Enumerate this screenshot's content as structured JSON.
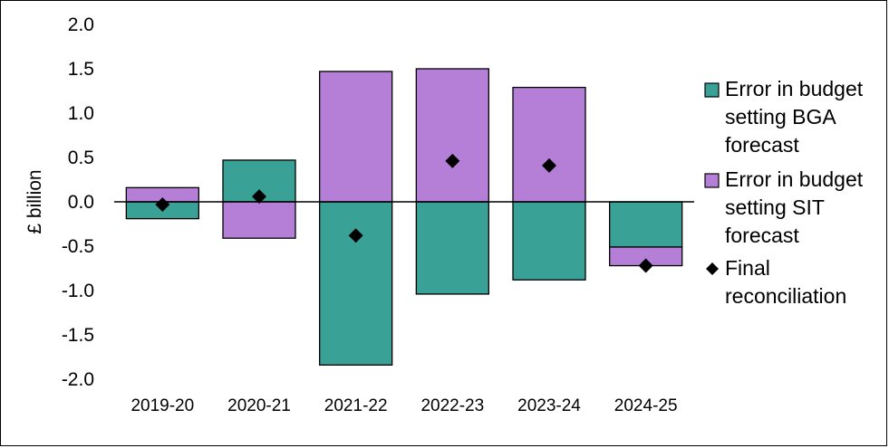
{
  "chart_data": {
    "type": "bar",
    "stacked": true,
    "categories": [
      "2019-20",
      "2020-21",
      "2021-22",
      "2022-23",
      "2023-24",
      "2024-25"
    ],
    "series": [
      {
        "name": "Error in budget setting BGA forecast",
        "legend_lines": [
          "Error in budget",
          "setting BGA",
          "forecast"
        ],
        "kind": "bar",
        "color": "#3aa197",
        "values": [
          -0.19,
          0.47,
          -1.84,
          -1.04,
          -0.88,
          -0.51
        ]
      },
      {
        "name": "Error in budget setting SIT forecast",
        "legend_lines": [
          "Error in budget",
          "setting SIT",
          "forecast"
        ],
        "kind": "bar",
        "color": "#b57fd8",
        "values": [
          0.16,
          -0.41,
          1.47,
          1.5,
          1.29,
          -0.21
        ]
      },
      {
        "name": "Final reconciliation",
        "legend_lines": [
          "Final",
          "reconciliation"
        ],
        "kind": "marker",
        "marker": "diamond",
        "color": "#000000",
        "values": [
          -0.03,
          0.06,
          -0.38,
          0.46,
          0.41,
          -0.72
        ]
      }
    ],
    "title": "",
    "xlabel": "",
    "ylabel": "£ billion",
    "ylim": [
      -2.0,
      2.0
    ],
    "yticks": [
      2.0,
      1.5,
      1.0,
      0.5,
      0.0,
      -0.5,
      -1.0,
      -1.5,
      -2.0
    ],
    "ytick_labels": [
      "2.0",
      "1.5",
      "1.0",
      "0.5",
      "0.0",
      "-0.5",
      "-1.0",
      "-1.5",
      "-2.0"
    ],
    "grid": false,
    "legend": "right"
  }
}
